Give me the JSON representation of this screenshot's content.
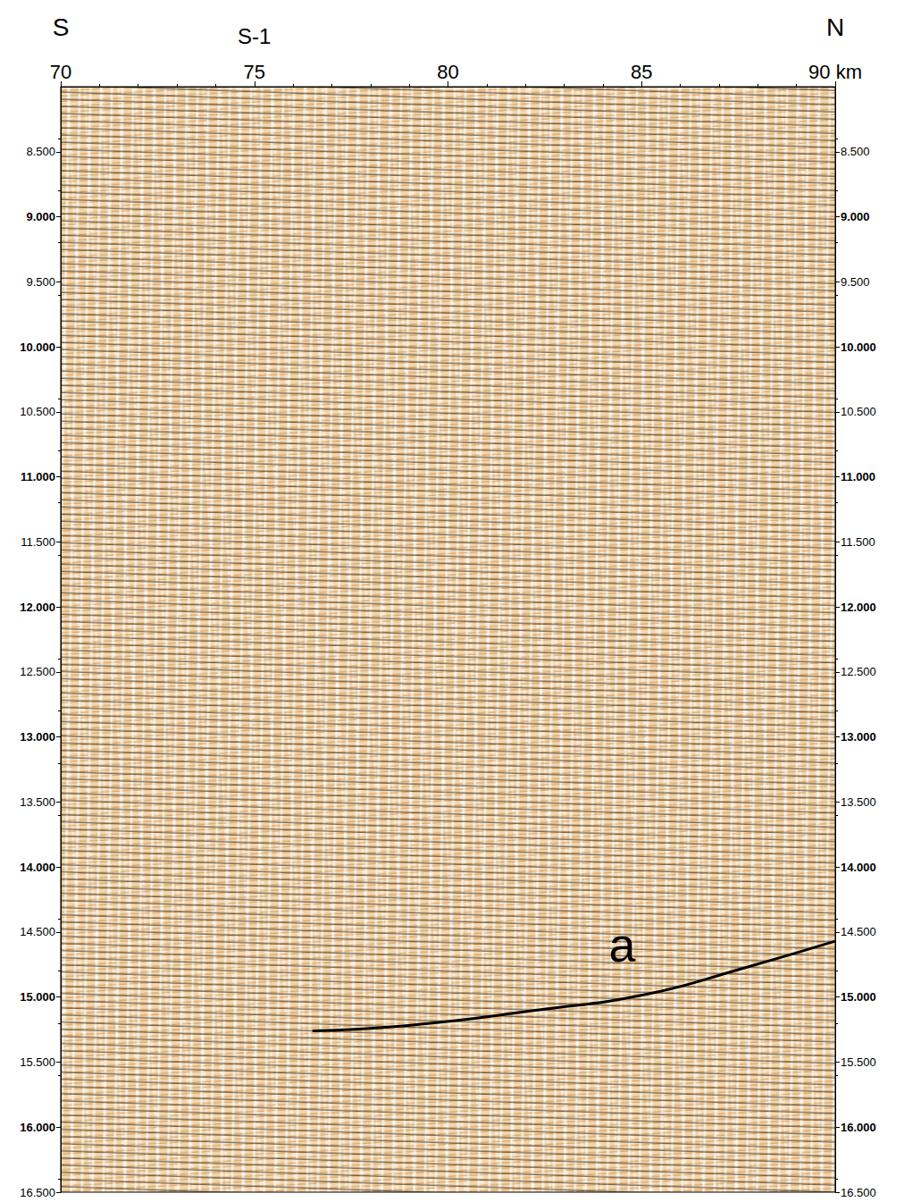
{
  "chart_data": {
    "type": "line",
    "x": [
      76.5,
      78.9,
      82.3,
      85.1,
      87.6,
      90
    ],
    "values": [
      15.26,
      15.22,
      15.1,
      14.98,
      14.78,
      14.57
    ],
    "color": "#000000",
    "xlim": [
      70,
      90
    ],
    "xticks": [
      70,
      75,
      80,
      85,
      {
        "value": 90,
        "label": "90 km"
      }
    ],
    "ylim": [
      8.0,
      16.5
    ],
    "yticks": [
      {
        "value": 8.5,
        "label": "8.500"
      },
      {
        "value": 9.0,
        "label": "9.000"
      },
      {
        "value": 9.5,
        "label": "9.500"
      },
      {
        "value": 10.0,
        "label": "10.000"
      },
      {
        "value": 10.5,
        "label": "10.500"
      },
      {
        "value": 11.0,
        "label": "11.000"
      },
      {
        "value": 11.5,
        "label": "11.500"
      },
      {
        "value": 12.0,
        "label": "12.000"
      },
      {
        "value": 12.5,
        "label": "12.500"
      },
      {
        "value": 13.0,
        "label": "13.000"
      },
      {
        "value": 13.5,
        "label": "13.500"
      },
      {
        "value": 14.0,
        "label": "14.000"
      },
      {
        "value": 14.5,
        "label": "14.500"
      },
      {
        "value": 15.0,
        "label": "15.000"
      },
      {
        "value": 15.5,
        "label": "15.500"
      },
      {
        "value": 16.0,
        "label": "16.000"
      },
      {
        "value": 16.5,
        "label": "16.500"
      }
    ],
    "grid": false,
    "annotations": [
      {
        "text": "S",
        "x": 70
      },
      {
        "text": "S-1",
        "x": 75
      },
      {
        "text": "N",
        "x": 90
      },
      {
        "text": "a",
        "x": 84.5,
        "y": 14.6
      }
    ]
  }
}
